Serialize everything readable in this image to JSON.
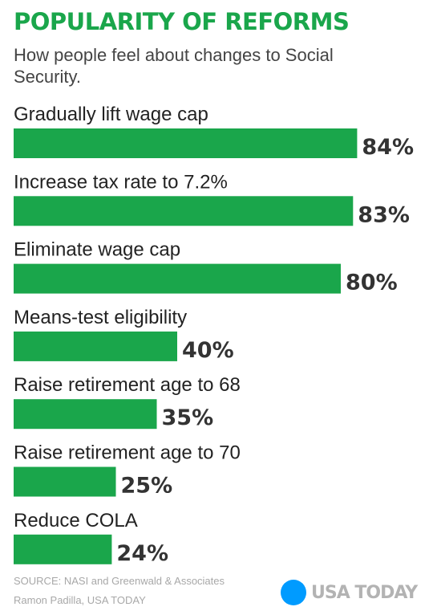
{
  "chart_data": {
    "type": "bar",
    "orientation": "horizontal",
    "title": "POPULARITY OF REFORMS",
    "subtitle": "How people feel about changes to Social Security.",
    "categories": [
      "Gradually lift wage cap",
      "Increase tax rate to 7.2%",
      "Eliminate wage cap",
      "Means-test eligibility",
      "Raise retirement age to 68",
      "Raise retirement age to 70",
      "Reduce COLA"
    ],
    "values": [
      84,
      83,
      80,
      40,
      35,
      25,
      24
    ],
    "value_labels": [
      "84%",
      "83%",
      "80%",
      "40%",
      "35%",
      "25%",
      "24%"
    ],
    "unit": "%",
    "xlim": [
      0,
      100
    ],
    "grid": false,
    "legend": "none",
    "bar_color": "#1aa64b"
  },
  "colors": {
    "title": "#1aa64b",
    "bar": "#1aa64b",
    "logo_dot": "#009bff",
    "logo_text": "#b3b3b3"
  },
  "footer": {
    "source": "SOURCE:  NASI and Greenwald & Associates",
    "credit": "Ramon Padilla, USA TODAY"
  },
  "logo": {
    "text": "USA TODAY",
    "icon": "usa-today-dot-icon"
  }
}
